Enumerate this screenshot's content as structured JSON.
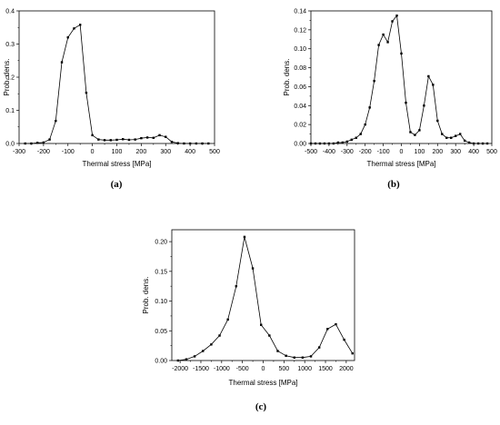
{
  "chart_data": [
    {
      "type": "line",
      "panel_label": "(a)",
      "xlabel": "Thermal stress [MPa]",
      "ylabel": "Prob. dens.",
      "xlim": [
        -300,
        500
      ],
      "ylim": [
        0,
        0.4
      ],
      "xticks": [
        -300,
        -200,
        -100,
        0,
        100,
        200,
        300,
        400,
        500
      ],
      "yticks": [
        0.0,
        0.1,
        0.2,
        0.3,
        0.4
      ],
      "ytick_labels": [
        "0.0",
        "0.1",
        "0.2",
        "0.3",
        "0.4"
      ],
      "grid": false,
      "markers": true,
      "x": [
        -275,
        -250,
        -225,
        -200,
        -175,
        -150,
        -125,
        -100,
        -75,
        -50,
        -25,
        0,
        25,
        50,
        75,
        100,
        125,
        150,
        175,
        200,
        225,
        250,
        275,
        300,
        325,
        350,
        375,
        400,
        425,
        450,
        475
      ],
      "y": [
        0.0,
        0.0,
        0.002,
        0.003,
        0.012,
        0.068,
        0.245,
        0.32,
        0.347,
        0.358,
        0.153,
        0.025,
        0.012,
        0.01,
        0.01,
        0.011,
        0.013,
        0.011,
        0.012,
        0.016,
        0.018,
        0.017,
        0.025,
        0.02,
        0.005,
        0.001,
        0.0,
        0.0,
        0.0,
        0.0,
        0.0
      ]
    },
    {
      "type": "line",
      "panel_label": "(b)",
      "xlabel": "Thermal stress [MPa]",
      "ylabel": "Prob. dens.",
      "xlim": [
        -500,
        500
      ],
      "ylim": [
        0,
        0.14
      ],
      "xticks": [
        -500,
        -400,
        -300,
        -200,
        -100,
        0,
        100,
        200,
        300,
        400,
        500
      ],
      "yticks": [
        0.0,
        0.02,
        0.04,
        0.06,
        0.08,
        0.1,
        0.12,
        0.14
      ],
      "ytick_labels": [
        "0.00",
        "0.02",
        "0.04",
        "0.06",
        "0.08",
        "0.10",
        "0.12",
        "0.14"
      ],
      "grid": false,
      "markers": true,
      "x": [
        -500,
        -475,
        -450,
        -425,
        -400,
        -375,
        -350,
        -325,
        -300,
        -275,
        -250,
        -225,
        -200,
        -175,
        -150,
        -125,
        -100,
        -75,
        -50,
        -25,
        0,
        25,
        50,
        75,
        100,
        125,
        150,
        175,
        200,
        225,
        250,
        275,
        300,
        325,
        350,
        375,
        400,
        425,
        450,
        475
      ],
      "y": [
        0.0,
        0.0,
        0.0,
        0.0,
        0.0,
        0.0,
        0.001,
        0.001,
        0.002,
        0.004,
        0.006,
        0.01,
        0.02,
        0.038,
        0.066,
        0.104,
        0.115,
        0.107,
        0.129,
        0.135,
        0.095,
        0.043,
        0.012,
        0.009,
        0.014,
        0.04,
        0.071,
        0.062,
        0.024,
        0.01,
        0.006,
        0.006,
        0.008,
        0.01,
        0.003,
        0.001,
        0.0,
        0.0,
        0.0,
        0.0
      ]
    },
    {
      "type": "line",
      "panel_label": "(c)",
      "xlabel": "Thermal stress [MPa]",
      "ylabel": "Prob. dens.",
      "xlim": [
        -2200,
        2200
      ],
      "ylim": [
        0,
        0.22
      ],
      "xticks": [
        -2000,
        -1500,
        -1000,
        -500,
        0,
        500,
        1000,
        1500,
        2000
      ],
      "yticks": [
        0.0,
        0.05,
        0.1,
        0.15,
        0.2
      ],
      "ytick_labels": [
        "0.00",
        "0.05",
        "0.10",
        "0.15",
        "0.20"
      ],
      "grid": false,
      "markers": true,
      "x": [
        -2050,
        -1850,
        -1650,
        -1450,
        -1250,
        -1050,
        -850,
        -650,
        -450,
        -250,
        -50,
        150,
        350,
        550,
        750,
        950,
        1150,
        1350,
        1550,
        1750,
        1950,
        2150
      ],
      "y": [
        0.0,
        0.002,
        0.007,
        0.016,
        0.027,
        0.042,
        0.069,
        0.125,
        0.208,
        0.155,
        0.06,
        0.042,
        0.016,
        0.008,
        0.005,
        0.005,
        0.007,
        0.022,
        0.053,
        0.061,
        0.035,
        0.012
      ]
    }
  ]
}
